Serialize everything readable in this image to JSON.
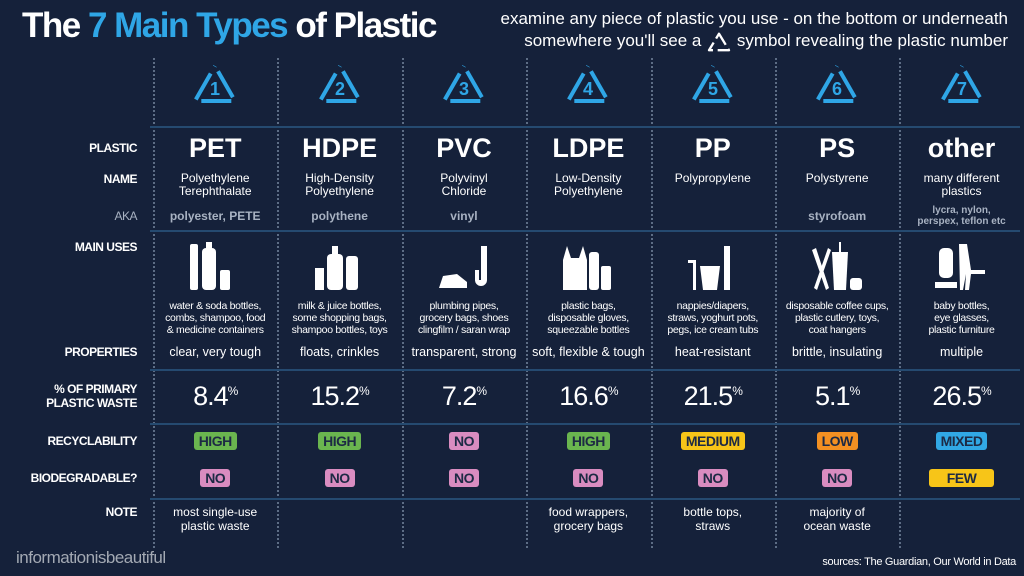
{
  "header": {
    "title_pre": "The ",
    "title_hl": "7 Main Types",
    "title_post": " of Plastic",
    "subtitle_line1": "examine any piece of plastic you use - on the bottom or underneath",
    "subtitle_line2a": "somewhere you'll see a",
    "subtitle_line2b": "symbol revealing the plastic number"
  },
  "labels": {
    "plastic": "PLASTIC",
    "name": "NAME",
    "aka": "AKA",
    "uses": "MAIN USES",
    "properties": "PROPERTIES",
    "pct1": "% OF PRIMARY",
    "pct2": "PLASTIC WASTE",
    "recyclability": "RECYCLABILITY",
    "biodegradable": "BIODEGRADABLE?",
    "note": "NOTE"
  },
  "colors": {
    "accent": "#2fa6e6",
    "background": "#15213a",
    "high": "#6ab54f",
    "no": "#d98cc0",
    "medium": "#f7c518",
    "low": "#f39022",
    "mixed": "#31a8e5",
    "few": "#f7c518"
  },
  "plastics": [
    {
      "num": "1",
      "code": "PET",
      "name1": "Polyethylene",
      "name2": "Terephthalate",
      "aka": "polyester, PETE",
      "aka2": "",
      "icons": "comb-bottle-icon",
      "uses1": "water & soda bottles,",
      "uses2": "combs, shampoo, food",
      "uses3": "& medicine containers",
      "props": "clear, very tough",
      "pct": "8.4",
      "recycle": "HIGH",
      "recycle_color": "#6ab54f",
      "bio": "NO",
      "bio_color": "#d98cc0",
      "note1": "most single-use",
      "note2": "plastic waste"
    },
    {
      "num": "2",
      "code": "HDPE",
      "name1": "High-Density",
      "name2": "Polyethylene",
      "aka": "polythene",
      "aka2": "",
      "icons": "milk-jug-bottle-icon",
      "uses1": "milk & juice bottles,",
      "uses2": "some shopping bags,",
      "uses3": "shampoo bottles, toys",
      "props": "floats, crinkles",
      "pct": "15.2",
      "recycle": "HIGH",
      "recycle_color": "#6ab54f",
      "bio": "NO",
      "bio_color": "#d98cc0",
      "note1": "",
      "note2": ""
    },
    {
      "num": "3",
      "code": "PVC",
      "name1": "Polyvinyl",
      "name2": "Chloride",
      "aka": "vinyl",
      "aka2": "",
      "icons": "shoe-pipe-icon",
      "uses1": "plumbing pipes,",
      "uses2": "grocery bags, shoes",
      "uses3": "clingfilm / saran wrap",
      "props": "transparent, strong",
      "pct": "7.2",
      "recycle": "NO",
      "recycle_color": "#d98cc0",
      "bio": "NO",
      "bio_color": "#d98cc0",
      "note1": "",
      "note2": ""
    },
    {
      "num": "4",
      "code": "LDPE",
      "name1": "Low-Density",
      "name2": "Polyethylene",
      "aka": "",
      "aka2": "",
      "icons": "bag-bottle-glove-icon",
      "uses1": "plastic bags,",
      "uses2": "disposable gloves,",
      "uses3": "squeezable bottles",
      "props": "soft, flexible & tough",
      "pct": "16.6",
      "recycle": "HIGH",
      "recycle_color": "#6ab54f",
      "bio": "NO",
      "bio_color": "#d98cc0",
      "note1": "food wrappers,",
      "note2": "grocery bags"
    },
    {
      "num": "5",
      "code": "PP",
      "name1": "Polypropylene",
      "name2": "",
      "aka": "",
      "aka2": "",
      "icons": "straw-tub-peg-icon",
      "uses1": "nappies/diapers,",
      "uses2": "straws, yoghurt pots,",
      "uses3": "pegs, ice cream tubs",
      "props": "heat-resistant",
      "pct": "21.5",
      "recycle": "MEDIUM",
      "recycle_color": "#f7c518",
      "bio": "NO",
      "bio_color": "#d98cc0",
      "note1": "bottle tops,",
      "note2": "straws"
    },
    {
      "num": "6",
      "code": "PS",
      "name1": "Polystyrene",
      "name2": "",
      "aka": "styrofoam",
      "aka2": "",
      "icons": "cutlery-cup-toy-icon",
      "uses1": "disposable coffee cups,",
      "uses2": "plastic cutlery, toys,",
      "uses3": "coat hangers",
      "props": "brittle, insulating",
      "pct": "5.1",
      "recycle": "LOW",
      "recycle_color": "#f39022",
      "bio": "NO",
      "bio_color": "#d98cc0",
      "note1": "majority of",
      "note2": "ocean waste"
    },
    {
      "num": "7",
      "code": "other",
      "name1": "many different",
      "name2": "plastics",
      "aka": "lycra, nylon,",
      "aka2": "perspex, teflon etc",
      "icons": "baby-bottle-chair-glasses-icon",
      "uses1": "baby bottles,",
      "uses2": "eye glasses,",
      "uses3": "plastic furniture",
      "props": "multiple",
      "pct": "26.5",
      "recycle": "MIXED",
      "recycle_color": "#31a8e5",
      "bio": "FEW",
      "bio_color": "#f7c518",
      "note1": "",
      "note2": ""
    }
  ],
  "footer": {
    "brand": "informationisbeautiful",
    "sources": "sources: The Guardian, Our World in Data"
  }
}
